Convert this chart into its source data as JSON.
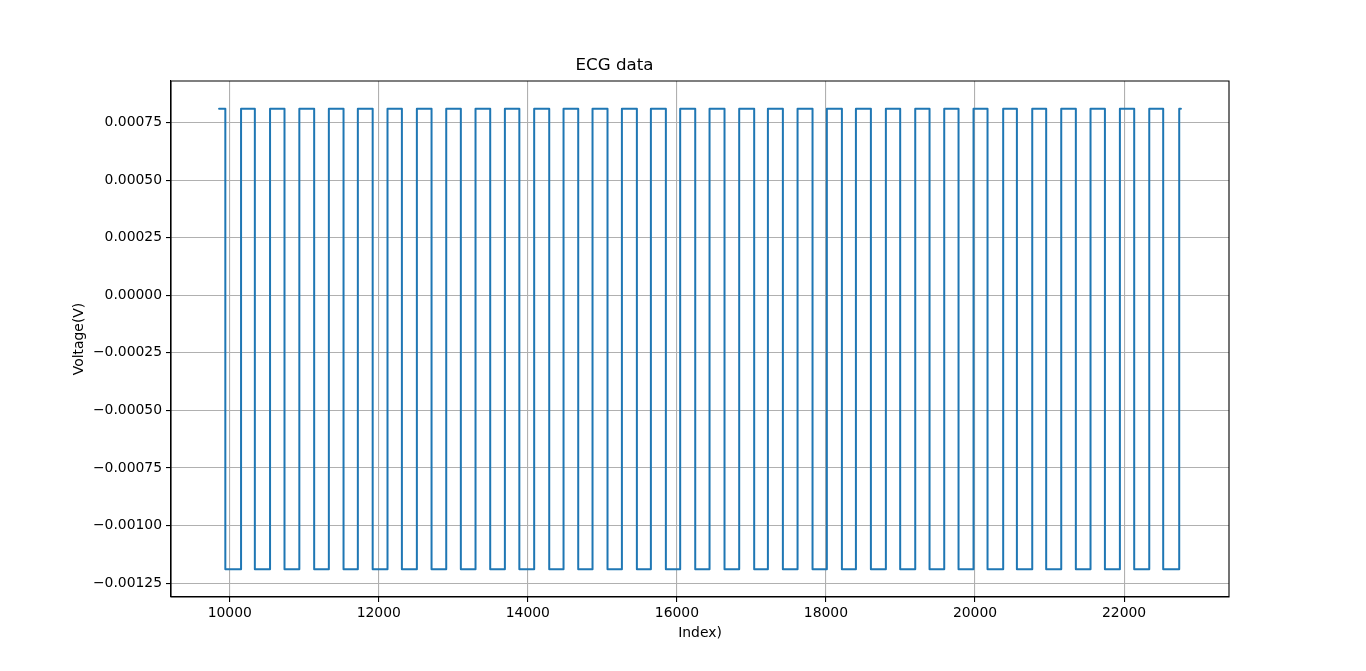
{
  "chart_data": {
    "type": "line",
    "title": "ECG data",
    "xlabel": "Index)",
    "ylabel": "Voltage(V)",
    "xlim": [
      9212,
      23408
    ],
    "xticks": [
      10000,
      12000,
      14000,
      16000,
      18000,
      20000,
      22000
    ],
    "ylim": [
      -0.00131,
      0.00093
    ],
    "yticks": [
      {
        "value": 0.00075,
        "label": "0.00075"
      },
      {
        "value": 0.0005,
        "label": "0.00050"
      },
      {
        "value": 0.00025,
        "label": "0.00025"
      },
      {
        "value": 0,
        "label": "0.00000"
      },
      {
        "value": -0.00025,
        "label": "−0.00025"
      },
      {
        "value": -0.0005,
        "label": "−0.00050"
      },
      {
        "value": -0.00075,
        "label": "−0.00075"
      },
      {
        "value": -0.001,
        "label": "−0.00100"
      },
      {
        "value": -0.00125,
        "label": "−0.00125"
      }
    ],
    "grid": true,
    "line_style": "solid",
    "x": [
      9857,
      9941,
      9941,
      10152,
      10152,
      10337,
      10337,
      10541,
      10541,
      10735,
      10735,
      10934,
      10934,
      11133,
      11133,
      11330,
      11330,
      11527,
      11527,
      11719,
      11719,
      11918,
      11918,
      12117,
      12117,
      12310,
      12310,
      12511,
      12511,
      12708,
      12708,
      12905,
      12905,
      13101,
      13101,
      13298,
      13298,
      13495,
      13495,
      13692,
      13692,
      13886,
      13886,
      14085,
      14085,
      14287,
      14287,
      14479,
      14479,
      14676,
      14676,
      14868,
      14868,
      15069,
      15069,
      15262,
      15262,
      15463,
      15463,
      15651,
      15651,
      15852,
      15852,
      16044,
      16044,
      16246,
      16246,
      16438,
      16438,
      16639,
      16639,
      16836,
      16836,
      17037,
      17037,
      17221,
      17221,
      17422,
      17422,
      17619,
      17619,
      17820,
      17820,
      18012,
      18012,
      18214,
      18214,
      18402,
      18402,
      18603,
      18603,
      18804,
      18804,
      18996,
      18996,
      19198,
      19198,
      19390,
      19390,
      19587,
      19587,
      19779,
      19779,
      19980,
      19980,
      20168,
      20168,
      20378,
      20378,
      20562,
      20562,
      20768,
      20768,
      20955,
      20955,
      21157,
      21157,
      21353,
      21353,
      21550,
      21550,
      21743,
      21743,
      21944,
      21944,
      22136,
      22136,
      22338,
      22338,
      22525,
      22525,
      22740,
      22740,
      22763
    ],
    "series": [
      {
        "color": "#1f77b4",
        "values": [
          0.00081,
          0.00081,
          -0.00119,
          -0.00119,
          0.00081,
          0.00081,
          -0.00119,
          -0.00119,
          0.00081,
          0.00081,
          -0.00119,
          -0.00119,
          0.00081,
          0.00081,
          -0.00119,
          -0.00119,
          0.00081,
          0.00081,
          -0.00119,
          -0.00119,
          0.00081,
          0.00081,
          -0.00119,
          -0.00119,
          0.00081,
          0.00081,
          -0.00119,
          -0.00119,
          0.00081,
          0.00081,
          -0.00119,
          -0.00119,
          0.00081,
          0.00081,
          -0.00119,
          -0.00119,
          0.00081,
          0.00081,
          -0.00119,
          -0.00119,
          0.00081,
          0.00081,
          -0.00119,
          -0.00119,
          0.00081,
          0.00081,
          -0.00119,
          -0.00119,
          0.00081,
          0.00081,
          -0.00119,
          -0.00119,
          0.00081,
          0.00081,
          -0.00119,
          -0.00119,
          0.00081,
          0.00081,
          -0.00119,
          -0.00119,
          0.00081,
          0.00081,
          -0.00119,
          -0.00119,
          0.00081,
          0.00081,
          -0.00119,
          -0.00119,
          0.00081,
          0.00081,
          -0.00119,
          -0.00119,
          0.00081,
          0.00081,
          -0.00119,
          -0.00119,
          0.00081,
          0.00081,
          -0.00119,
          -0.00119,
          0.00081,
          0.00081,
          -0.00119,
          -0.00119,
          0.00081,
          0.00081,
          -0.00119,
          -0.00119,
          0.00081,
          0.00081,
          -0.00119,
          -0.00119,
          0.00081,
          0.00081,
          -0.00119,
          -0.00119,
          0.00081,
          0.00081,
          -0.00119,
          -0.00119,
          0.00081,
          0.00081,
          -0.00119,
          -0.00119,
          0.00081,
          0.00081,
          -0.00119,
          -0.00119,
          0.00081,
          0.00081,
          -0.00119,
          -0.00119,
          0.00081,
          0.00081,
          -0.00119,
          -0.00119,
          0.00081,
          0.00081,
          -0.00119,
          -0.00119,
          0.00081,
          0.00081,
          -0.00119,
          -0.00119,
          0.00081,
          0.00081,
          -0.00119,
          -0.00119,
          0.00081,
          0.00081,
          -0.00119,
          -0.00119,
          0.00081,
          0.00081
        ]
      }
    ]
  }
}
